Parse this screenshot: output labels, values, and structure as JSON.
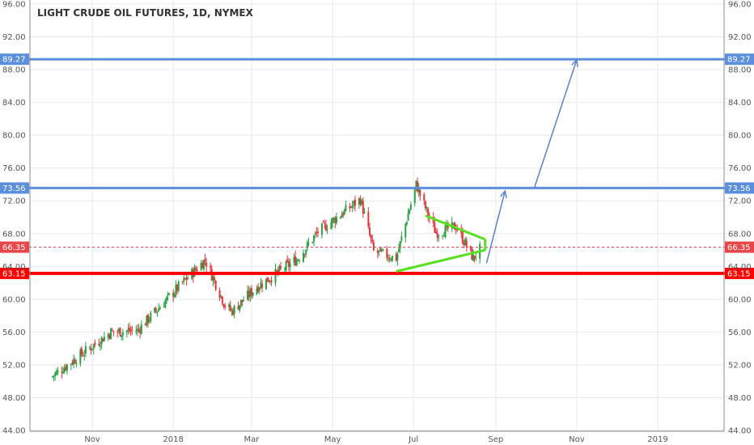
{
  "chart_data": {
    "type": "candlestick",
    "title": "LIGHT CRUDE OIL FUTURES, 1D, NYMEX",
    "y_axis": {
      "ticks": [
        "96.00",
        "92.00",
        "88.00",
        "84.00",
        "80.00",
        "76.00",
        "72.00",
        "68.00",
        "64.00",
        "60.00",
        "56.00",
        "52.00",
        "48.00",
        "44.00"
      ],
      "range": [
        44,
        96
      ]
    },
    "x_axis": {
      "ticks": [
        {
          "label": "Nov",
          "date": "2017-11-01"
        },
        {
          "label": "2018",
          "date": "2018-01-01"
        },
        {
          "label": "Mar",
          "date": "2018-03-01"
        },
        {
          "label": "May",
          "date": "2018-05-01"
        },
        {
          "label": "Jul",
          "date": "2018-07-01"
        },
        {
          "label": "Sep",
          "date": "2018-09-01"
        },
        {
          "label": "Nov",
          "date": "2018-11-01"
        },
        {
          "label": "2019",
          "date": "2019-01-01"
        }
      ],
      "range": [
        "2017-09-15",
        "2019-02-20"
      ]
    },
    "price_levels": [
      {
        "name": "target-2",
        "value": 89.27,
        "label": "89.27",
        "color": "#5b8fde",
        "style": "solid"
      },
      {
        "name": "target-1",
        "value": 73.56,
        "label": "73.56",
        "color": "#5b8fde",
        "style": "solid"
      },
      {
        "name": "last-price",
        "value": 66.35,
        "label": "66.35",
        "color": "#e8474a",
        "style": "dashed"
      },
      {
        "name": "support",
        "value": 63.15,
        "label": "63.15",
        "color": "#ff0000",
        "style": "solid"
      }
    ],
    "key_points": [
      {
        "date": "2017-10-01",
        "price": 50.5
      },
      {
        "date": "2017-11-15",
        "price": 56.0
      },
      {
        "date": "2017-12-05",
        "price": 56.2
      },
      {
        "date": "2018-01-05",
        "price": 61.5
      },
      {
        "date": "2018-01-25",
        "price": 64.8
      },
      {
        "date": "2018-02-09",
        "price": 59.3
      },
      {
        "date": "2018-02-14",
        "price": 58.5
      },
      {
        "date": "2018-03-05",
        "price": 61.5
      },
      {
        "date": "2018-04-05",
        "price": 65.0
      },
      {
        "date": "2018-04-20",
        "price": 68.2
      },
      {
        "date": "2018-05-22",
        "price": 72.2
      },
      {
        "date": "2018-06-01",
        "price": 65.8
      },
      {
        "date": "2018-06-18",
        "price": 65.0
      },
      {
        "date": "2018-07-03",
        "price": 74.0
      },
      {
        "date": "2018-07-12",
        "price": 70.3
      },
      {
        "date": "2018-07-18",
        "price": 68.1
      },
      {
        "date": "2018-08-02",
        "price": 68.9
      },
      {
        "date": "2018-08-15",
        "price": 65.0
      },
      {
        "date": "2018-08-21",
        "price": 66.35
      }
    ],
    "triangle": [
      {
        "date": "2018-06-18",
        "price": 63.4
      },
      {
        "date": "2018-07-10",
        "price": 70.2
      },
      {
        "date": "2018-08-24",
        "price": 67.3
      },
      {
        "date": "2018-08-24",
        "price": 66.0
      }
    ],
    "projection_arrows": [
      {
        "from": {
          "date": "2018-08-25",
          "price": 64.4
        },
        "to": {
          "date": "2018-09-08",
          "price": 73.2
        }
      },
      {
        "from": {
          "date": "2018-09-30",
          "price": 73.56
        },
        "to": {
          "date": "2018-11-01",
          "price": 89.2
        }
      }
    ],
    "colors": {
      "up": "#27a243",
      "down": "#e5353a",
      "triangle": "#55e11c",
      "arrow": "#5b7fd1",
      "grid": "#e9e9e9"
    },
    "grid": true
  }
}
